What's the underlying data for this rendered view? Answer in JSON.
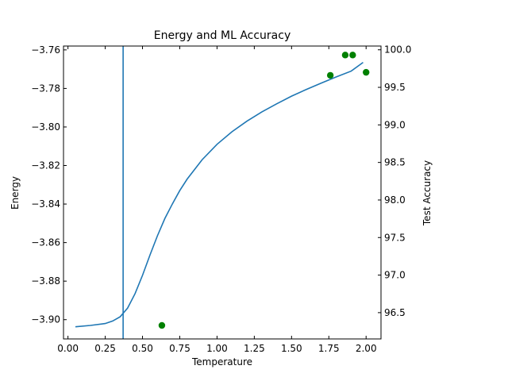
{
  "chart_data": {
    "type": "line",
    "title": "Energy and ML Accuracy",
    "xlabel": "Temperature",
    "ylabel": "Energy",
    "y2label": "Test Accuracy",
    "xlim": [
      -0.03,
      2.1
    ],
    "ylim": [
      -3.91,
      -3.758
    ],
    "y2lim": [
      96.15,
      100.05
    ],
    "x_ticks": [
      "0.00",
      "0.25",
      "0.50",
      "0.75",
      "1.00",
      "1.25",
      "1.50",
      "1.75",
      "2.00"
    ],
    "y_ticks": [
      "−3.76",
      "−3.78",
      "−3.80",
      "−3.82",
      "−3.84",
      "−3.86",
      "−3.88",
      "−3.90"
    ],
    "y2_ticks": [
      "100.0",
      "99.5",
      "99.0",
      "98.5",
      "98.0",
      "97.5",
      "97.0",
      "96.5"
    ],
    "vertical_line_x": 0.37,
    "grid": false,
    "series": [
      {
        "axis": "left",
        "kind": "line",
        "color": "#1f77b4",
        "x": [
          0.05,
          0.15,
          0.25,
          0.3,
          0.35,
          0.4,
          0.45,
          0.5,
          0.55,
          0.6,
          0.65,
          0.7,
          0.75,
          0.8,
          0.9,
          1.0,
          1.1,
          1.2,
          1.3,
          1.4,
          1.5,
          1.6,
          1.7,
          1.8,
          1.9,
          1.98
        ],
        "y": [
          -3.9037,
          -3.903,
          -3.902,
          -3.9007,
          -3.8985,
          -3.894,
          -3.8865,
          -3.877,
          -3.8665,
          -3.8565,
          -3.8475,
          -3.84,
          -3.833,
          -3.827,
          -3.817,
          -3.809,
          -3.8025,
          -3.797,
          -3.7922,
          -3.788,
          -3.784,
          -3.7805,
          -3.7772,
          -3.774,
          -3.771,
          -3.7665
        ]
      },
      {
        "axis": "right",
        "kind": "scatter",
        "color": "#008000",
        "x": [
          0.63,
          1.76,
          1.86,
          1.91,
          2.0
        ],
        "y": [
          96.33,
          99.66,
          99.93,
          99.93,
          99.7
        ]
      }
    ]
  }
}
